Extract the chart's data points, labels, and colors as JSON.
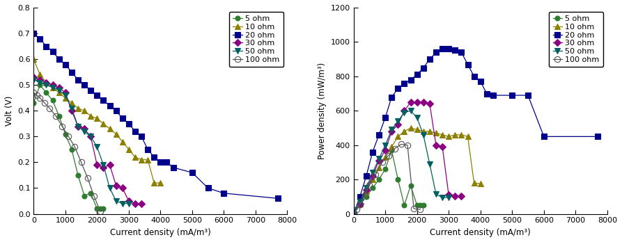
{
  "series": {
    "5ohm": {
      "label": "5 ohm",
      "color": "#2e7d2e",
      "marker": "o",
      "ms": 5,
      "mfc": "#2e7d2e",
      "line_color": "#2e7d2e",
      "volt_cd": [
        0,
        200,
        400,
        600,
        800,
        1000,
        1200,
        1400,
        1600,
        1800,
        2000,
        2100,
        2200
      ],
      "volt_v": [
        0.43,
        0.5,
        0.47,
        0.44,
        0.38,
        0.31,
        0.25,
        0.15,
        0.07,
        0.08,
        0.02,
        0.02,
        0.02
      ],
      "pow_cd": [
        0,
        200,
        400,
        600,
        800,
        1000,
        1200,
        1400,
        1600,
        1800,
        2000,
        2100,
        2200
      ],
      "pow_p": [
        0,
        50,
        100,
        150,
        200,
        260,
        370,
        200,
        50,
        165,
        50,
        50,
        50
      ]
    },
    "10ohm": {
      "label": "10 ohm",
      "color": "#8b8000",
      "marker": "^",
      "ms": 6,
      "mfc": "#8b8000",
      "line_color": "#8b8000",
      "volt_cd": [
        0,
        200,
        400,
        600,
        800,
        1000,
        1200,
        1400,
        1600,
        1800,
        2000,
        2200,
        2400,
        2600,
        2800,
        3000,
        3200,
        3400,
        3600,
        3800,
        4000
      ],
      "volt_v": [
        0.6,
        0.54,
        0.51,
        0.49,
        0.47,
        0.45,
        0.43,
        0.41,
        0.4,
        0.38,
        0.37,
        0.35,
        0.33,
        0.31,
        0.28,
        0.25,
        0.22,
        0.21,
        0.21,
        0.12,
        0.12
      ],
      "pow_cd": [
        0,
        200,
        400,
        600,
        800,
        1000,
        1200,
        1400,
        1600,
        1800,
        2000,
        2200,
        2400,
        2600,
        2800,
        3000,
        3200,
        3400,
        3600,
        3800,
        4000
      ],
      "pow_p": [
        0,
        60,
        130,
        200,
        270,
        330,
        390,
        450,
        480,
        500,
        490,
        480,
        480,
        470,
        460,
        450,
        460,
        460,
        450,
        180,
        175
      ]
    },
    "20ohm": {
      "label": "20 ohm",
      "color": "#00008b",
      "marker": "s",
      "ms": 6,
      "mfc": "#00008b",
      "line_color": "#00008b",
      "volt_cd": [
        0,
        200,
        400,
        600,
        800,
        1000,
        1200,
        1400,
        1600,
        1800,
        2000,
        2200,
        2400,
        2600,
        2800,
        3000,
        3200,
        3400,
        3600,
        3800,
        4000,
        4200,
        4400,
        5000,
        5500,
        6000,
        7700
      ],
      "volt_v": [
        0.7,
        0.68,
        0.65,
        0.63,
        0.6,
        0.58,
        0.55,
        0.52,
        0.5,
        0.48,
        0.46,
        0.44,
        0.42,
        0.4,
        0.37,
        0.35,
        0.32,
        0.3,
        0.25,
        0.22,
        0.2,
        0.2,
        0.18,
        0.16,
        0.1,
        0.08,
        0.06
      ],
      "pow_cd": [
        0,
        200,
        400,
        600,
        800,
        1000,
        1200,
        1400,
        1600,
        1800,
        2000,
        2200,
        2400,
        2600,
        2800,
        3000,
        3200,
        3400,
        3600,
        3800,
        4000,
        4200,
        4400,
        5000,
        5500,
        6000,
        7700
      ],
      "pow_p": [
        0,
        100,
        220,
        360,
        460,
        560,
        680,
        730,
        760,
        780,
        810,
        850,
        900,
        940,
        960,
        960,
        955,
        940,
        870,
        800,
        770,
        700,
        690,
        690,
        690,
        450,
        450
      ]
    },
    "30ohm": {
      "label": "30 ohm",
      "color": "#8b0082",
      "marker": "D",
      "ms": 5,
      "mfc": "#8b0082",
      "line_color": "#8b0082",
      "volt_cd": [
        0,
        200,
        400,
        600,
        800,
        1000,
        1200,
        1400,
        1600,
        1800,
        2000,
        2200,
        2400,
        2600,
        2800,
        3000,
        3200,
        3400
      ],
      "volt_v": [
        0.53,
        0.52,
        0.51,
        0.5,
        0.49,
        0.47,
        0.4,
        0.34,
        0.33,
        0.3,
        0.19,
        0.18,
        0.19,
        0.11,
        0.1,
        0.05,
        0.04,
        0.04
      ],
      "pow_cd": [
        0,
        200,
        400,
        600,
        800,
        1000,
        1200,
        1400,
        1600,
        1800,
        2000,
        2200,
        2400,
        2600,
        2800,
        3000,
        3200,
        3400
      ],
      "pow_p": [
        0,
        60,
        140,
        220,
        310,
        370,
        480,
        520,
        600,
        650,
        650,
        650,
        640,
        400,
        390,
        110,
        105,
        105
      ]
    },
    "50ohm": {
      "label": "50 ohm",
      "color": "#006060",
      "marker": "v",
      "ms": 6,
      "mfc": "#006060",
      "line_color": "#006060",
      "volt_cd": [
        0,
        200,
        400,
        600,
        800,
        1000,
        1200,
        1400,
        1600,
        1800,
        2000,
        2200,
        2400,
        2600,
        2800,
        3000
      ],
      "volt_v": [
        0.52,
        0.51,
        0.5,
        0.49,
        0.48,
        0.46,
        0.41,
        0.34,
        0.32,
        0.3,
        0.26,
        0.19,
        0.1,
        0.05,
        0.04,
        0.04
      ],
      "pow_cd": [
        0,
        200,
        400,
        600,
        800,
        1000,
        1200,
        1400,
        1600,
        1800,
        2000,
        2200,
        2400,
        2600,
        2800,
        3000
      ],
      "pow_p": [
        0,
        70,
        150,
        240,
        320,
        400,
        490,
        540,
        590,
        600,
        560,
        460,
        290,
        115,
        95,
        95
      ]
    },
    "100ohm": {
      "label": "100 ohm",
      "color": "#555555",
      "marker": "o",
      "ms": 6,
      "mfc": "none",
      "line_color": "#555555",
      "volt_cd": [
        0,
        100,
        200,
        350,
        500,
        700,
        900,
        1100,
        1300,
        1500,
        1700,
        1900,
        2100
      ],
      "volt_v": [
        0.47,
        0.46,
        0.45,
        0.43,
        0.41,
        0.38,
        0.34,
        0.3,
        0.26,
        0.2,
        0.14,
        0.07,
        0.01
      ],
      "pow_cd": [
        0,
        100,
        200,
        350,
        500,
        700,
        900,
        1100,
        1300,
        1500,
        1700,
        1900,
        2100
      ],
      "pow_p": [
        0,
        25,
        55,
        110,
        170,
        230,
        300,
        340,
        380,
        405,
        400,
        30,
        25
      ]
    }
  },
  "left_plot": {
    "xlabel": "Current density (mA/m³)",
    "ylabel": "Volt (V)",
    "xlim": [
      0,
      8000
    ],
    "ylim": [
      0,
      0.8
    ],
    "xticks": [
      0,
      1000,
      2000,
      3000,
      4000,
      5000,
      6000,
      7000,
      8000
    ],
    "yticks": [
      0.0,
      0.1,
      0.2,
      0.3,
      0.4,
      0.5,
      0.6,
      0.7,
      0.8
    ]
  },
  "right_plot": {
    "xlabel": "Current density (mA/m³)",
    "ylabel": "Power density (mW/m³)",
    "xlim": [
      0,
      8000
    ],
    "ylim": [
      0,
      1200
    ],
    "xticks": [
      0,
      1000,
      2000,
      3000,
      4000,
      5000,
      6000,
      7000,
      8000
    ],
    "yticks": [
      0,
      200,
      400,
      600,
      800,
      1000,
      1200
    ]
  },
  "series_order": [
    "5ohm",
    "10ohm",
    "20ohm",
    "30ohm",
    "50ohm",
    "100ohm"
  ],
  "background_color": "#ffffff",
  "font_size": 8.5,
  "tick_font_size": 8
}
